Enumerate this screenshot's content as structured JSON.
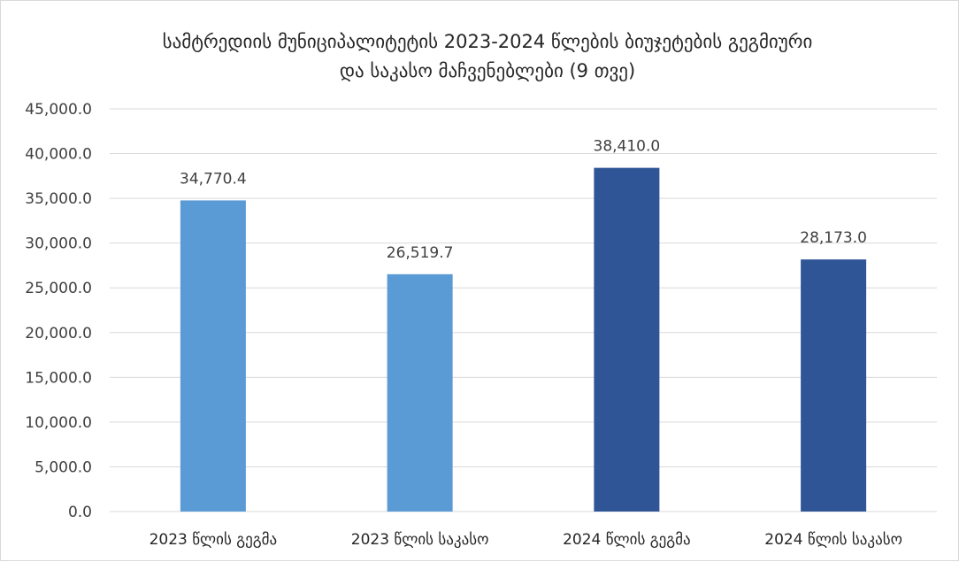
{
  "chart_data": {
    "type": "bar",
    "title_lines": [
      "სამტრედიის მუნიციპალიტეტის 2023-2024 წლების ბიუჯეტების გეგმიური",
      "და  საკასო მაჩვენებლები (9 თვე)"
    ],
    "categories": [
      "2023 წლის გეგმა",
      "2023 წლის საკასო",
      "2024 წლის გეგმა",
      "2024  წლის საკასო"
    ],
    "values": [
      34770.4,
      26519.7,
      38410.0,
      28173.0
    ],
    "value_labels": [
      "34,770.4",
      "26,519.7",
      "38,410.0",
      "28,173.0"
    ],
    "bar_colors": [
      "#5b9bd5",
      "#5b9bd5",
      "#2f5597",
      "#2f5597"
    ],
    "ylim": [
      0,
      45000
    ],
    "yticks": [
      0,
      5000,
      10000,
      15000,
      20000,
      25000,
      30000,
      35000,
      40000,
      45000
    ],
    "ytick_labels": [
      "0.0",
      "5,000.0",
      "10,000.0",
      "15,000.0",
      "20,000.0",
      "25,000.0",
      "30,000.0",
      "35,000.0",
      "40,000.0",
      "45,000.0"
    ],
    "grid": true,
    "legend": "none",
    "xlabel": "",
    "ylabel": ""
  }
}
